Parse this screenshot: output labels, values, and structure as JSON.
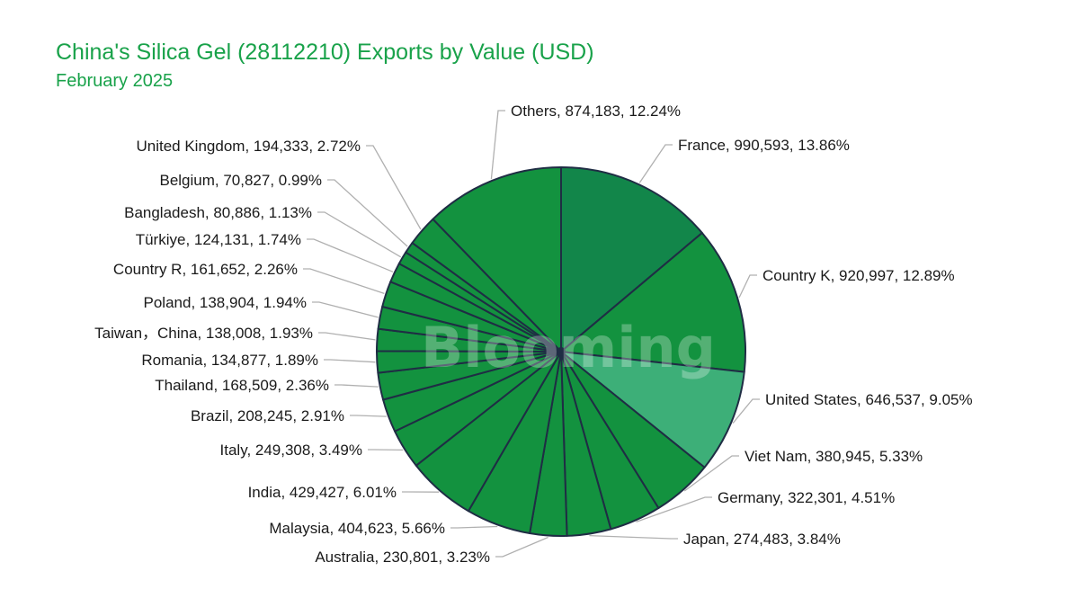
{
  "title": "China's Silica Gel (28112210) Exports by Value (USD)",
  "subtitle": "February 2025",
  "watermark": "Blooming",
  "colors": {
    "title": "#19a24a",
    "dark": "#12864a",
    "main": "#13923f",
    "light": "#3daf78",
    "border": "#1f2d44"
  },
  "chart_data": {
    "type": "pie",
    "title": "China's Silica Gel (28112210) Exports by Value (USD)",
    "subtitle": "February 2025",
    "slices": [
      {
        "name": "France",
        "value": 990593,
        "percent": "13.86%",
        "value_label": "990,593",
        "color": "#12864a"
      },
      {
        "name": "Country K",
        "value": 920997,
        "percent": "12.89%",
        "value_label": "920,997",
        "color": "#13923f"
      },
      {
        "name": "United States",
        "value": 646537,
        "percent": "9.05%",
        "value_label": "646,537",
        "color": "#3daf78"
      },
      {
        "name": "Viet Nam",
        "value": 380945,
        "percent": "5.33%",
        "value_label": "380,945",
        "color": "#13923f"
      },
      {
        "name": "Germany",
        "value": 322301,
        "percent": "4.51%",
        "value_label": "322,301",
        "color": "#13923f"
      },
      {
        "name": "Japan",
        "value": 274483,
        "percent": "3.84%",
        "value_label": "274,483",
        "color": "#13923f"
      },
      {
        "name": "Australia",
        "value": 230801,
        "percent": "3.23%",
        "value_label": "230,801",
        "color": "#13923f"
      },
      {
        "name": "Malaysia",
        "value": 404623,
        "percent": "5.66%",
        "value_label": "404,623",
        "color": "#13923f"
      },
      {
        "name": "India",
        "value": 429427,
        "percent": "6.01%",
        "value_label": "429,427",
        "color": "#13923f"
      },
      {
        "name": "Italy",
        "value": 249308,
        "percent": "3.49%",
        "value_label": "249,308",
        "color": "#13923f"
      },
      {
        "name": "Brazil",
        "value": 208245,
        "percent": "2.91%",
        "value_label": "208,245",
        "color": "#13923f"
      },
      {
        "name": "Thailand",
        "value": 168509,
        "percent": "2.36%",
        "value_label": "168,509",
        "color": "#13923f"
      },
      {
        "name": "Romania",
        "value": 134877,
        "percent": "1.89%",
        "value_label": "134,877",
        "color": "#13923f"
      },
      {
        "name": "Taiwan，China",
        "value": 138008,
        "percent": "1.93%",
        "value_label": "138,008",
        "color": "#13923f"
      },
      {
        "name": "Poland",
        "value": 138904,
        "percent": "1.94%",
        "value_label": "138,904",
        "color": "#13923f"
      },
      {
        "name": "Country R",
        "value": 161652,
        "percent": "2.26%",
        "value_label": "161,652",
        "color": "#13923f"
      },
      {
        "name": "Türkiye",
        "value": 124131,
        "percent": "1.74%",
        "value_label": "124,131",
        "color": "#13923f"
      },
      {
        "name": "Bangladesh",
        "value": 80886,
        "percent": "1.13%",
        "value_label": "80,886",
        "color": "#13923f"
      },
      {
        "name": "Belgium",
        "value": 70827,
        "percent": "0.99%",
        "value_label": "70,827",
        "color": "#13923f"
      },
      {
        "name": "United Kingdom",
        "value": 194333,
        "percent": "2.72%",
        "value_label": "194,333",
        "color": "#13923f"
      },
      {
        "name": "Others",
        "value": 874183,
        "percent": "12.24%",
        "value_label": "874,183",
        "color": "#13923f"
      }
    ],
    "labels": [
      "France, 990,593, 13.86%",
      "Country K, 920,997, 12.89%",
      "United States, 646,537, 9.05%",
      "Viet Nam, 380,945, 5.33%",
      "Germany, 322,301, 4.51%",
      "Japan, 274,483, 3.84%",
      "Australia, 230,801, 3.23%",
      "Malaysia, 404,623, 5.66%",
      "India, 429,427, 6.01%",
      "Italy, 249,308, 3.49%",
      "Brazil, 208,245, 2.91%",
      "Thailand, 168,509, 2.36%",
      "Romania, 134,877, 1.89%",
      "Taiwan，China, 138,008, 1.93%",
      "Poland, 138,904, 1.94%",
      "Country R, 161,652, 2.26%",
      "Türkiye, 124,131, 1.74%",
      "Bangladesh, 80,886, 1.13%",
      "Belgium, 70,827, 0.99%",
      "United Kingdom, 194,333, 2.72%",
      "Others, 874,183, 12.24%"
    ],
    "start": "12 o'clock",
    "direction": "clockwise",
    "legend": "none"
  }
}
